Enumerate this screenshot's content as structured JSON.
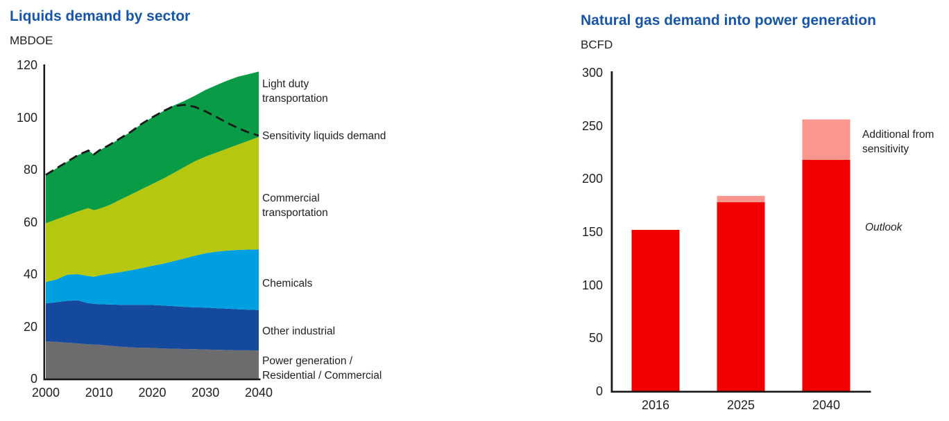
{
  "left_chart": {
    "title": "Liquids demand by sector",
    "unit": "MBDOE",
    "annotations": {
      "light_duty": "Light duty transportation",
      "sensitivity": "Sensitivity liquids demand",
      "commercial": "Commercial transportation",
      "chemicals": "Chemicals",
      "other_industrial": "Other industrial",
      "power": "Power generation / Residential / Commercial"
    }
  },
  "right_chart": {
    "title": "Natural gas demand into power generation",
    "unit": "BCFD",
    "annotations": {
      "additional": "Additional from sensitivity",
      "outlook": "Outlook"
    }
  },
  "colors": {
    "title_blue": "#1656a8",
    "axis_black": "#1a1a1a",
    "gray": "#6c6c6e",
    "dark_blue": "#14499d",
    "light_blue": "#00a0e0",
    "yellow_green": "#b5c70e",
    "green": "#0a9b46",
    "red": "#f20000",
    "pink": "#f9968e"
  },
  "chart_data": [
    {
      "type": "area",
      "stacked": true,
      "title": "Liquids demand by sector",
      "ylabel": "MBDOE",
      "xlabel": "",
      "x": [
        2000,
        2002,
        2004,
        2006,
        2008,
        2009,
        2010,
        2012,
        2014,
        2016,
        2018,
        2020,
        2022,
        2024,
        2026,
        2028,
        2030,
        2032,
        2034,
        2036,
        2038,
        2040
      ],
      "series": [
        {
          "name": "Power generation / Residential / Commercial",
          "color": "#6c6c6e",
          "values": [
            14.3,
            14.1,
            13.8,
            13.5,
            13.2,
            13.1,
            13.0,
            12.6,
            12.3,
            12.0,
            11.9,
            11.8,
            11.6,
            11.5,
            11.4,
            11.3,
            11.2,
            11.1,
            11.0,
            10.9,
            10.9,
            10.8
          ]
        },
        {
          "name": "Other industrial",
          "color": "#14499d",
          "values": [
            14.5,
            15.2,
            16.0,
            16.5,
            15.7,
            15.6,
            15.5,
            15.8,
            16.0,
            16.3,
            16.4,
            16.4,
            16.4,
            16.3,
            16.1,
            16.0,
            16.0,
            15.9,
            15.8,
            15.7,
            15.5,
            15.5
          ]
        },
        {
          "name": "Chemicals",
          "color": "#00a0e0",
          "values": [
            8.2,
            8.7,
            10.0,
            10.0,
            10.4,
            10.3,
            11.0,
            11.8,
            12.5,
            13.2,
            14.0,
            15.0,
            16.0,
            17.2,
            18.5,
            19.8,
            20.8,
            21.6,
            22.2,
            22.7,
            23.0,
            23.2
          ]
        },
        {
          "name": "Commercial transportation",
          "color": "#b5c70e",
          "values": [
            22.5,
            23.0,
            22.7,
            24.0,
            26.0,
            25.5,
            25.5,
            26.3,
            27.7,
            29.0,
            30.2,
            31.3,
            32.5,
            33.7,
            35.0,
            36.1,
            37.0,
            37.9,
            39.0,
            40.2,
            41.6,
            43.0
          ]
        },
        {
          "name": "Light duty transportation",
          "color": "#0a9b46",
          "values": [
            18.5,
            19.5,
            20.5,
            21.5,
            22.0,
            21.3,
            22.3,
            23.0,
            23.5,
            24.0,
            25.0,
            25.5,
            25.8,
            25.8,
            25.3,
            25.1,
            25.5,
            25.8,
            26.0,
            26.0,
            25.5,
            25.0
          ]
        }
      ],
      "line": {
        "name": "Sensitivity liquids demand",
        "color": "#1a1a1a",
        "style": "dashed",
        "values": [
          78.0,
          80.5,
          83.0,
          85.5,
          87.3,
          85.8,
          87.3,
          89.5,
          92.0,
          94.5,
          97.5,
          100.0,
          102.3,
          104.3,
          104.8,
          104.0,
          102.3,
          100.2,
          98.0,
          96.0,
          94.3,
          93.0
        ]
      },
      "ylim": [
        0,
        120
      ],
      "yticks": [
        0,
        20,
        40,
        60,
        80,
        100,
        120
      ],
      "xticks": [
        2000,
        2010,
        2020,
        2030,
        2040
      ],
      "grid": false,
      "legend_position": "right-annotations"
    },
    {
      "type": "bar",
      "stacked": true,
      "title": "Natural gas demand into power generation",
      "ylabel": "BCFD",
      "xlabel": "",
      "categories": [
        "2016",
        "2025",
        "2040"
      ],
      "series": [
        {
          "name": "Outlook",
          "color": "#f20000",
          "values": [
            152,
            178,
            218
          ]
        },
        {
          "name": "Additional from sensitivity",
          "color": "#f9968e",
          "values": [
            0,
            6,
            38
          ]
        }
      ],
      "ylim": [
        0,
        300
      ],
      "yticks": [
        0,
        50,
        100,
        150,
        200,
        250,
        300
      ],
      "grid": false,
      "legend_position": "right-annotations"
    }
  ]
}
